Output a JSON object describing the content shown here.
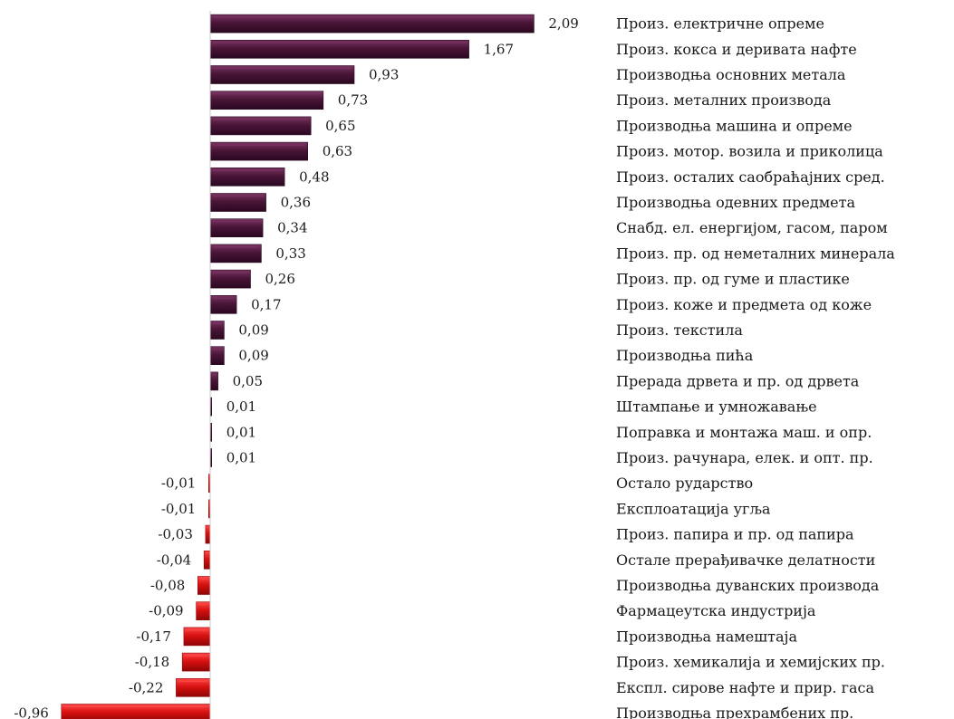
{
  "chart_data": {
    "type": "bar",
    "orientation": "horizontal",
    "categories": [
      "Произ. електричне опреме",
      "Произ. кокса и деривата нафте",
      "Производња основних метала",
      "Произ. металних производа",
      "Производња машина и опреме",
      "Произ. мотор. возила и приколица",
      "Произ. осталих саобраћајних сред.",
      "Производња одевних предмета",
      "Снабд. ел. енергијом, гасом, паром",
      "Произ. пр. од неметалних минерала",
      "Произ. пр. од гуме и пластике",
      "Произ. коже и предмета од коже",
      "Произ. текстила",
      "Производња пића",
      "Прерада дрвета и пр. од дрвета",
      "Штампање и умножавање",
      "Поправка и монтажа маш. и опр.",
      "Произ. рачунара, елек. и опт. пр.",
      "Остало рударство",
      "Експлоатација угља",
      "Произ. папира и пр. од папира",
      "Остале прерађивачке делатности",
      "Производња дуванских производа",
      "Фармацеутска индустрија",
      "Производња намештаја",
      "Произ. хемикалија и хемијских пр.",
      "Експл. сирове нафте и прир. гаса",
      "Производња прехрамбених пр."
    ],
    "values": [
      2.09,
      1.67,
      0.93,
      0.73,
      0.65,
      0.63,
      0.48,
      0.36,
      0.34,
      0.33,
      0.26,
      0.17,
      0.09,
      0.09,
      0.05,
      0.01,
      0.01,
      0.01,
      -0.01,
      -0.01,
      -0.03,
      -0.04,
      -0.08,
      -0.09,
      -0.17,
      -0.18,
      -0.22,
      -0.96
    ],
    "value_labels": [
      "2,09",
      "1,67",
      "0,93",
      "0,73",
      "0,65",
      "0,63",
      "0,48",
      "0,36",
      "0,34",
      "0,33",
      "0,26",
      "0,17",
      "0,09",
      "0,09",
      "0,05",
      "0,01",
      "0,01",
      "0,01",
      "-0,01",
      "-0,01",
      "-0,03",
      "-0,04",
      "-0,08",
      "-0,09",
      "-0,17",
      "-0,18",
      "-0,22",
      "-0,96"
    ],
    "title": "",
    "xlabel": "",
    "ylabel": "",
    "grid": false,
    "legend": "none",
    "colors": {
      "positive": "#4a1538",
      "positive_light": "#7a3462",
      "positive_dark": "#2a0820",
      "negative": "#d81010",
      "negative_light": "#ff4a4a",
      "negative_dark": "#8e0606",
      "axis": "#c8c8c8"
    }
  }
}
